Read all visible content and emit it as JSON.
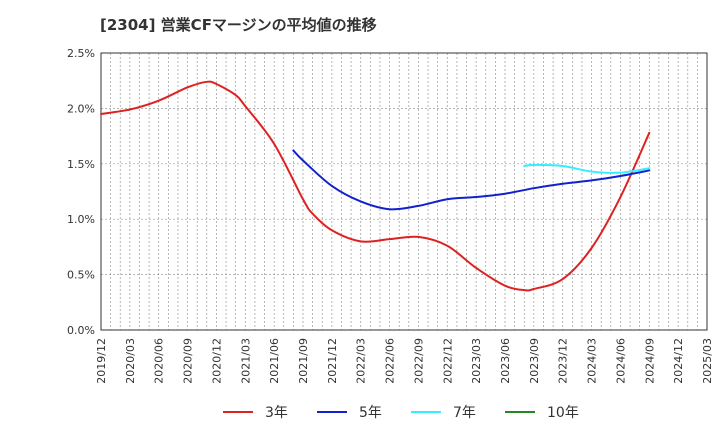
{
  "chart_data": {
    "type": "line",
    "title": "[2304]  営業CFマージンの平均値の推移",
    "xlabel": "",
    "ylabel": "",
    "x_ticks": [
      "2019/12",
      "2020/03",
      "2020/06",
      "2020/09",
      "2020/12",
      "2021/03",
      "2021/06",
      "2021/09",
      "2021/12",
      "2022/03",
      "2022/06",
      "2022/09",
      "2022/12",
      "2023/03",
      "2023/06",
      "2023/09",
      "2023/12",
      "2024/03",
      "2024/06",
      "2024/09",
      "2024/12",
      "2025/03"
    ],
    "y_ticks": [
      "0.0%",
      "0.5%",
      "1.0%",
      "1.5%",
      "2.0%",
      "2.5%"
    ],
    "ylim": [
      0,
      2.5
    ],
    "y_unit": "%",
    "grid": true,
    "legend_position": "bottom",
    "series": [
      {
        "name": "3年",
        "color": "#dd2222",
        "points": [
          [
            "2019/12",
            1.95
          ],
          [
            "2020/03",
            1.99
          ],
          [
            "2020/06",
            2.07
          ],
          [
            "2020/09",
            2.19
          ],
          [
            "2020/11",
            2.24
          ],
          [
            "2020/12",
            2.22
          ],
          [
            "2021/02",
            2.12
          ],
          [
            "2021/03",
            2.02
          ],
          [
            "2021/06",
            1.68
          ],
          [
            "2021/09",
            1.18
          ],
          [
            "2021/10",
            1.05
          ],
          [
            "2021/12",
            0.9
          ],
          [
            "2022/03",
            0.8
          ],
          [
            "2022/06",
            0.82
          ],
          [
            "2022/09",
            0.84
          ],
          [
            "2022/12",
            0.76
          ],
          [
            "2023/03",
            0.56
          ],
          [
            "2023/06",
            0.4
          ],
          [
            "2023/08",
            0.36
          ],
          [
            "2023/09",
            0.37
          ],
          [
            "2023/12",
            0.46
          ],
          [
            "2024/03",
            0.74
          ],
          [
            "2024/06",
            1.2
          ],
          [
            "2024/09",
            1.78
          ]
        ]
      },
      {
        "name": "5年",
        "color": "#1122cc",
        "points": [
          [
            "2021/08",
            1.62
          ],
          [
            "2021/09",
            1.53
          ],
          [
            "2021/12",
            1.3
          ],
          [
            "2022/03",
            1.16
          ],
          [
            "2022/06",
            1.09
          ],
          [
            "2022/09",
            1.12
          ],
          [
            "2022/12",
            1.18
          ],
          [
            "2023/03",
            1.2
          ],
          [
            "2023/06",
            1.23
          ],
          [
            "2023/09",
            1.28
          ],
          [
            "2023/12",
            1.32
          ],
          [
            "2024/03",
            1.35
          ],
          [
            "2024/06",
            1.39
          ],
          [
            "2024/09",
            1.44
          ]
        ]
      },
      {
        "name": "7年",
        "color": "#33eeff",
        "points": [
          [
            "2023/08",
            1.48
          ],
          [
            "2023/09",
            1.49
          ],
          [
            "2023/12",
            1.48
          ],
          [
            "2024/03",
            1.43
          ],
          [
            "2024/06",
            1.42
          ],
          [
            "2024/09",
            1.46
          ]
        ]
      },
      {
        "name": "10年",
        "color": "#228822",
        "points": []
      }
    ]
  }
}
